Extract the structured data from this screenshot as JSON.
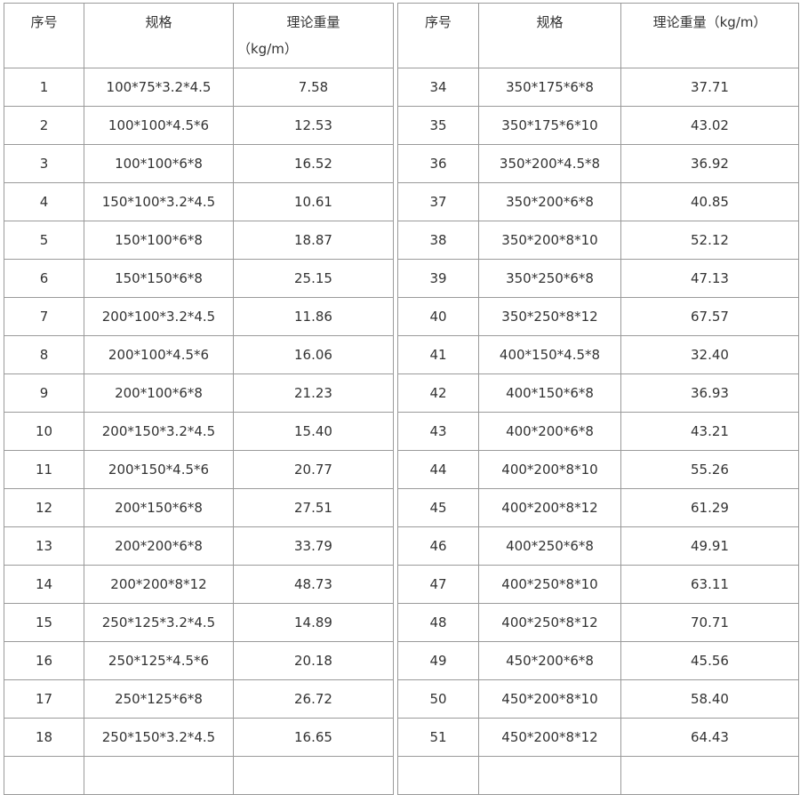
{
  "headers": {
    "no": "序号",
    "spec": "规格",
    "weight_main": "理论重量",
    "weight_unit": "（kg/m）",
    "weight_full": "理论重量（kg/m）"
  },
  "left_rows": [
    {
      "no": "1",
      "spec": "100*75*3.2*4.5",
      "weight": "7.58"
    },
    {
      "no": "2",
      "spec": "100*100*4.5*6",
      "weight": "12.53"
    },
    {
      "no": "3",
      "spec": "100*100*6*8",
      "weight": "16.52"
    },
    {
      "no": "4",
      "spec": "150*100*3.2*4.5",
      "weight": "10.61"
    },
    {
      "no": "5",
      "spec": "150*100*6*8",
      "weight": "18.87"
    },
    {
      "no": "6",
      "spec": "150*150*6*8",
      "weight": "25.15"
    },
    {
      "no": "7",
      "spec": "200*100*3.2*4.5",
      "weight": "11.86"
    },
    {
      "no": "8",
      "spec": "200*100*4.5*6",
      "weight": "16.06"
    },
    {
      "no": "9",
      "spec": "200*100*6*8",
      "weight": "21.23"
    },
    {
      "no": "10",
      "spec": "200*150*3.2*4.5",
      "weight": "15.40"
    },
    {
      "no": "11",
      "spec": "200*150*4.5*6",
      "weight": "20.77"
    },
    {
      "no": "12",
      "spec": "200*150*6*8",
      "weight": "27.51"
    },
    {
      "no": "13",
      "spec": "200*200*6*8",
      "weight": "33.79"
    },
    {
      "no": "14",
      "spec": "200*200*8*12",
      "weight": "48.73"
    },
    {
      "no": "15",
      "spec": "250*125*3.2*4.5",
      "weight": "14.89"
    },
    {
      "no": "16",
      "spec": "250*125*4.5*6",
      "weight": "20.18"
    },
    {
      "no": "17",
      "spec": "250*125*6*8",
      "weight": "26.72"
    },
    {
      "no": "18",
      "spec": "250*150*3.2*4.5",
      "weight": "16.65"
    }
  ],
  "right_rows": [
    {
      "no": "34",
      "spec": "350*175*6*8",
      "weight": "37.71"
    },
    {
      "no": "35",
      "spec": "350*175*6*10",
      "weight": "43.02"
    },
    {
      "no": "36",
      "spec": "350*200*4.5*8",
      "weight": "36.92"
    },
    {
      "no": "37",
      "spec": "350*200*6*8",
      "weight": "40.85"
    },
    {
      "no": "38",
      "spec": "350*200*8*10",
      "weight": "52.12"
    },
    {
      "no": "39",
      "spec": "350*250*6*8",
      "weight": "47.13"
    },
    {
      "no": "40",
      "spec": "350*250*8*12",
      "weight": "67.57"
    },
    {
      "no": "41",
      "spec": "400*150*4.5*8",
      "weight": "32.40"
    },
    {
      "no": "42",
      "spec": "400*150*6*8",
      "weight": "36.93"
    },
    {
      "no": "43",
      "spec": "400*200*6*8",
      "weight": "43.21"
    },
    {
      "no": "44",
      "spec": "400*200*8*10",
      "weight": "55.26"
    },
    {
      "no": "45",
      "spec": "400*200*8*12",
      "weight": "61.29"
    },
    {
      "no": "46",
      "spec": "400*250*6*8",
      "weight": "49.91"
    },
    {
      "no": "47",
      "spec": "400*250*8*10",
      "weight": "63.11"
    },
    {
      "no": "48",
      "spec": "400*250*8*12",
      "weight": "70.71"
    },
    {
      "no": "49",
      "spec": "450*200*6*8",
      "weight": "45.56"
    },
    {
      "no": "50",
      "spec": "450*200*8*10",
      "weight": "58.40"
    },
    {
      "no": "51",
      "spec": "450*200*8*12",
      "weight": "64.43"
    }
  ]
}
